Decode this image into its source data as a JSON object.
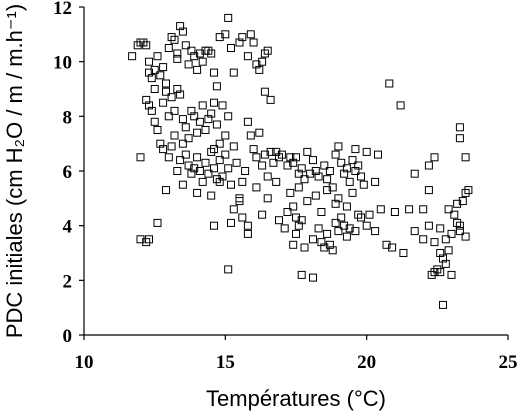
{
  "chart_data": {
    "type": "scatter",
    "title": "",
    "xlabel": "Températures (°C)",
    "ylabel": "PDC initiales (cm H₂O / m / m.h⁻¹)",
    "xlim": [
      10,
      25
    ],
    "ylim": [
      0,
      12
    ],
    "x_ticks": [
      "10",
      "15",
      "20",
      "25"
    ],
    "y_ticks": [
      "0",
      "2",
      "4",
      "6",
      "8",
      "10",
      "12"
    ],
    "marker": "open-square",
    "grid": false,
    "series": [
      {
        "points": [
          [
            11.7,
            10.2
          ],
          [
            11.9,
            10.6
          ],
          [
            12.0,
            10.7
          ],
          [
            12.1,
            10.7
          ],
          [
            12.2,
            10.6
          ],
          [
            12.3,
            10.0
          ],
          [
            12.3,
            9.6
          ],
          [
            12.4,
            9.4
          ],
          [
            12.5,
            9.7
          ],
          [
            12.5,
            9.0
          ],
          [
            12.6,
            10.2
          ],
          [
            12.7,
            9.5
          ],
          [
            12.8,
            9.8
          ],
          [
            12.9,
            9.2
          ],
          [
            13.0,
            10.5
          ],
          [
            13.1,
            10.9
          ],
          [
            13.2,
            10.8
          ],
          [
            13.3,
            10.1
          ],
          [
            13.4,
            11.3
          ],
          [
            13.5,
            11.1
          ],
          [
            13.6,
            10.6
          ],
          [
            13.7,
            9.9
          ],
          [
            13.8,
            10.4
          ],
          [
            13.9,
            10.2
          ],
          [
            14.0,
            9.7
          ],
          [
            14.1,
            10.3
          ],
          [
            14.2,
            10.0
          ],
          [
            14.3,
            10.4
          ],
          [
            14.4,
            10.4
          ],
          [
            14.5,
            10.3
          ],
          [
            14.6,
            9.6
          ],
          [
            14.7,
            9.1
          ],
          [
            14.8,
            10.9
          ],
          [
            15.0,
            11.0
          ],
          [
            15.1,
            11.6
          ],
          [
            15.2,
            10.5
          ],
          [
            15.3,
            9.6
          ],
          [
            15.5,
            10.7
          ],
          [
            15.6,
            10.9
          ],
          [
            15.8,
            10.2
          ],
          [
            15.9,
            11.0
          ],
          [
            16.0,
            10.7
          ],
          [
            16.1,
            9.9
          ],
          [
            16.2,
            9.7
          ],
          [
            16.3,
            10.0
          ],
          [
            16.4,
            10.3
          ],
          [
            16.5,
            10.4
          ],
          [
            16.4,
            8.9
          ],
          [
            16.6,
            8.6
          ],
          [
            13.3,
            10.3
          ],
          [
            12.2,
            8.6
          ],
          [
            12.3,
            8.4
          ],
          [
            12.4,
            8.2
          ],
          [
            12.5,
            7.8
          ],
          [
            12.6,
            7.5
          ],
          [
            12.7,
            7.0
          ],
          [
            12.8,
            8.5
          ],
          [
            12.9,
            8.9
          ],
          [
            13.0,
            8.0
          ],
          [
            13.1,
            8.7
          ],
          [
            13.2,
            8.2
          ],
          [
            13.3,
            9.0
          ],
          [
            13.4,
            8.8
          ],
          [
            13.5,
            7.9
          ],
          [
            13.6,
            7.6
          ],
          [
            13.7,
            7.2
          ],
          [
            13.8,
            8.2
          ],
          [
            13.9,
            8.0
          ],
          [
            14.0,
            7.4
          ],
          [
            14.1,
            7.8
          ],
          [
            14.2,
            8.4
          ],
          [
            14.3,
            7.5
          ],
          [
            14.4,
            7.9
          ],
          [
            14.5,
            8.1
          ],
          [
            14.6,
            8.5
          ],
          [
            14.7,
            7.7
          ],
          [
            14.8,
            7.0
          ],
          [
            14.9,
            8.4
          ],
          [
            15.0,
            7.3
          ],
          [
            15.1,
            8.0
          ],
          [
            12.8,
            6.8
          ],
          [
            13.0,
            6.5
          ],
          [
            13.1,
            6.9
          ],
          [
            13.2,
            7.3
          ],
          [
            13.3,
            6.0
          ],
          [
            13.4,
            6.4
          ],
          [
            13.5,
            7.0
          ],
          [
            13.6,
            6.6
          ],
          [
            13.7,
            6.2
          ],
          [
            13.8,
            5.9
          ],
          [
            14.0,
            6.5
          ],
          [
            14.1,
            6.0
          ],
          [
            14.2,
            5.6
          ],
          [
            14.3,
            6.3
          ],
          [
            14.4,
            5.9
          ],
          [
            14.5,
            6.7
          ],
          [
            14.6,
            6.1
          ],
          [
            14.7,
            5.7
          ],
          [
            14.8,
            6.4
          ],
          [
            14.9,
            5.8
          ],
          [
            15.0,
            6.6
          ],
          [
            15.1,
            6.1
          ],
          [
            15.2,
            5.5
          ],
          [
            15.3,
            6.9
          ],
          [
            15.4,
            6.3
          ],
          [
            15.5,
            5.0
          ],
          [
            15.6,
            5.6
          ],
          [
            15.7,
            6.0
          ],
          [
            15.8,
            7.8
          ],
          [
            15.9,
            7.3
          ],
          [
            16.0,
            6.8
          ],
          [
            16.1,
            6.5
          ],
          [
            16.2,
            7.4
          ],
          [
            16.3,
            6.2
          ],
          [
            16.4,
            6.6
          ],
          [
            16.5,
            5.8
          ],
          [
            16.6,
            6.7
          ],
          [
            16.7,
            6.3
          ],
          [
            16.8,
            6.7
          ],
          [
            16.9,
            6.5
          ],
          [
            17.0,
            6.6
          ],
          [
            17.2,
            6.2
          ],
          [
            17.3,
            6.5
          ],
          [
            17.4,
            6.3
          ],
          [
            17.5,
            6.5
          ],
          [
            17.6,
            5.9
          ],
          [
            17.7,
            6.1
          ],
          [
            17.8,
            5.7
          ],
          [
            17.9,
            6.7
          ],
          [
            18.0,
            5.9
          ],
          [
            18.1,
            6.4
          ],
          [
            18.2,
            6.0
          ],
          [
            18.3,
            5.8
          ],
          [
            18.5,
            6.2
          ],
          [
            18.6,
            5.7
          ],
          [
            18.7,
            6.0
          ],
          [
            18.8,
            5.4
          ],
          [
            18.9,
            6.6
          ],
          [
            19.0,
            6.9
          ],
          [
            19.1,
            6.3
          ],
          [
            19.2,
            5.9
          ],
          [
            19.3,
            6.1
          ],
          [
            19.4,
            5.6
          ],
          [
            19.5,
            6.4
          ],
          [
            19.6,
            6.0
          ],
          [
            19.7,
            6.2
          ],
          [
            19.8,
            5.8
          ],
          [
            19.9,
            5.5
          ],
          [
            12.9,
            5.3
          ],
          [
            13.5,
            5.5
          ],
          [
            14.0,
            5.2
          ],
          [
            14.5,
            5.1
          ],
          [
            14.8,
            5.6
          ],
          [
            15.2,
            4.1
          ],
          [
            15.3,
            4.6
          ],
          [
            15.5,
            4.9
          ],
          [
            15.6,
            4.3
          ],
          [
            15.8,
            4.0
          ],
          [
            16.1,
            5.4
          ],
          [
            16.5,
            5.0
          ],
          [
            16.8,
            5.6
          ],
          [
            17.3,
            5.2
          ],
          [
            17.6,
            5.4
          ],
          [
            17.9,
            4.9
          ],
          [
            18.2,
            5.1
          ],
          [
            18.4,
            4.5
          ],
          [
            18.6,
            5.3
          ],
          [
            18.9,
            4.8
          ],
          [
            19.0,
            5.0
          ],
          [
            19.3,
            4.7
          ],
          [
            19.5,
            5.2
          ],
          [
            19.7,
            4.4
          ],
          [
            17.5,
            4.3
          ],
          [
            17.6,
            4.0
          ],
          [
            17.5,
            3.7
          ],
          [
            17.7,
            4.2
          ],
          [
            17.4,
            3.3
          ],
          [
            17.8,
            3.2
          ],
          [
            18.1,
            3.5
          ],
          [
            18.3,
            3.9
          ],
          [
            18.4,
            3.4
          ],
          [
            18.6,
            3.7
          ],
          [
            18.5,
            3.2
          ],
          [
            18.7,
            3.3
          ],
          [
            18.8,
            3.1
          ],
          [
            18.9,
            4.1
          ],
          [
            19.0,
            3.8
          ],
          [
            19.1,
            4.3
          ],
          [
            19.2,
            4.0
          ],
          [
            19.3,
            3.6
          ],
          [
            19.6,
            3.8
          ],
          [
            19.8,
            4.3
          ],
          [
            20.1,
            4.4
          ],
          [
            20.3,
            3.8
          ],
          [
            20.5,
            4.6
          ],
          [
            20.7,
            3.3
          ],
          [
            20.9,
            3.2
          ],
          [
            21.3,
            3.0
          ],
          [
            21.5,
            4.6
          ],
          [
            21.7,
            3.8
          ],
          [
            22.0,
            3.5
          ],
          [
            22.2,
            4.0
          ],
          [
            22.4,
            3.4
          ],
          [
            22.6,
            3.9
          ],
          [
            22.8,
            3.5
          ],
          [
            23.0,
            3.7
          ],
          [
            23.2,
            4.1
          ],
          [
            23.5,
            3.6
          ],
          [
            23.3,
            3.8
          ],
          [
            22.9,
            3.1
          ],
          [
            22.6,
            3.0
          ],
          [
            22.7,
            2.8
          ],
          [
            22.5,
            2.4
          ],
          [
            22.4,
            2.3
          ],
          [
            22.3,
            2.2
          ],
          [
            22.6,
            2.3
          ],
          [
            22.8,
            2.6
          ],
          [
            23.0,
            2.2
          ],
          [
            22.7,
            1.1
          ],
          [
            23.4,
            4.9
          ],
          [
            23.5,
            5.2
          ],
          [
            23.6,
            5.3
          ],
          [
            23.2,
            4.8
          ],
          [
            22.9,
            4.6
          ],
          [
            23.1,
            4.4
          ],
          [
            23.3,
            4.0
          ],
          [
            22.0,
            4.6
          ],
          [
            22.2,
            5.3
          ],
          [
            21.7,
            5.9
          ],
          [
            22.2,
            6.2
          ],
          [
            22.4,
            6.5
          ],
          [
            23.3,
            7.6
          ],
          [
            23.5,
            6.5
          ],
          [
            23.3,
            7.2
          ],
          [
            20.8,
            9.2
          ],
          [
            21.2,
            8.4
          ],
          [
            20.4,
            6.6
          ],
          [
            20.0,
            6.7
          ],
          [
            19.6,
            6.8
          ],
          [
            12.0,
            6.5
          ],
          [
            12.0,
            3.5
          ],
          [
            12.2,
            3.4
          ],
          [
            12.3,
            3.5
          ],
          [
            12.6,
            4.1
          ],
          [
            14.6,
            4.0
          ],
          [
            15.1,
            2.4
          ],
          [
            17.7,
            2.2
          ],
          [
            18.1,
            2.1
          ],
          [
            17.2,
            4.5
          ],
          [
            17.4,
            4.7
          ],
          [
            17.1,
            3.9
          ],
          [
            16.9,
            4.2
          ],
          [
            15.8,
            3.7
          ],
          [
            14.6,
            6.8
          ],
          [
            13.9,
            6.1
          ],
          [
            16.3,
            4.4
          ],
          [
            20.0,
            4.0
          ],
          [
            20.3,
            5.6
          ],
          [
            21.0,
            4.5
          ],
          [
            19.4,
            3.9
          ]
        ]
      }
    ]
  }
}
